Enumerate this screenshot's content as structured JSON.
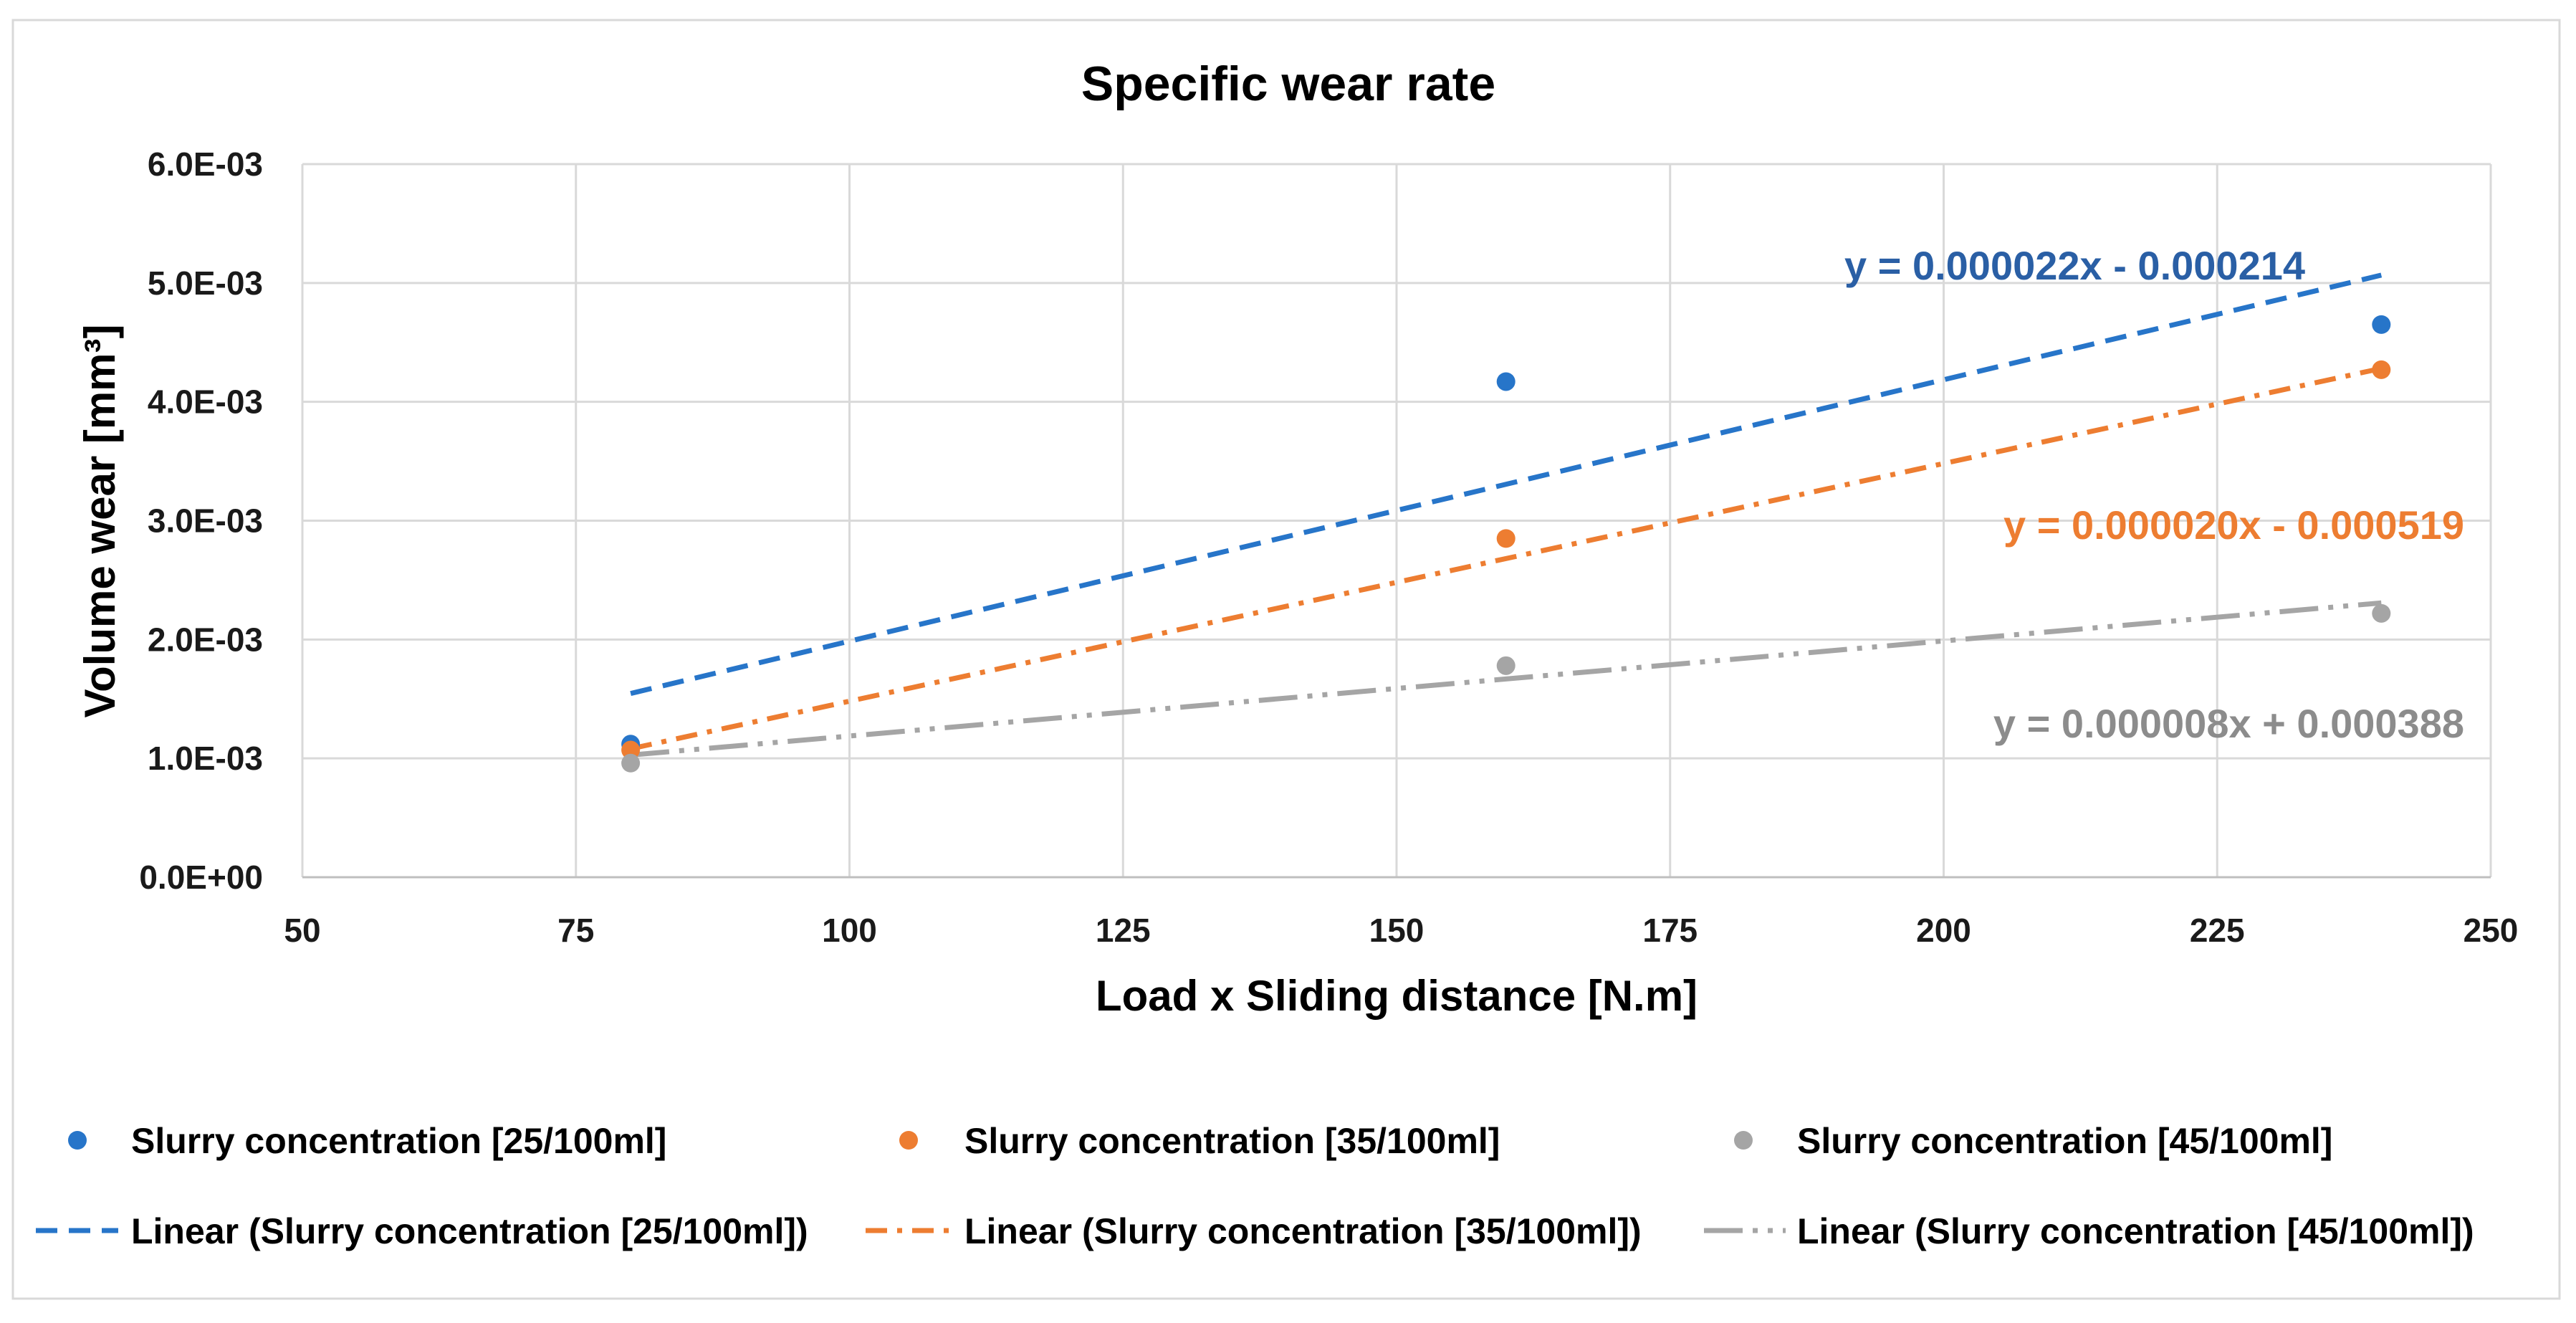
{
  "chart_data": {
    "type": "scatter",
    "title": "Specific wear rate",
    "xlabel": "Load x Sliding distance [N.m]",
    "ylabel": "Volume wear [mm³]",
    "xlim": [
      50,
      250
    ],
    "ylim": [
      0,
      0.006
    ],
    "xticks": [
      50,
      75,
      100,
      125,
      150,
      175,
      200,
      225,
      250
    ],
    "xtick_labels": [
      "50",
      "75",
      "100",
      "125",
      "150",
      "175",
      "200",
      "225",
      "250"
    ],
    "yticks": [
      0,
      0.001,
      0.002,
      0.003,
      0.004,
      0.005,
      0.006
    ],
    "ytick_labels": [
      "0.0E+00",
      "1.0E-03",
      "2.0E-03",
      "3.0E-03",
      "4.0E-03",
      "5.0E-03",
      "6.0E-03"
    ],
    "grid": true,
    "legend_position": "bottom",
    "series": [
      {
        "name": "Slurry concentration [25/100ml]",
        "color": "#2775C9",
        "x": [
          80,
          160,
          240
        ],
        "y": [
          0.00112,
          0.00417,
          0.00465
        ],
        "trendline": {
          "name": "Linear (Slurry concentration [25/100ml])",
          "slope": 2.2e-05,
          "intercept": -0.000214,
          "x_range": [
            80,
            240
          ],
          "equation": "y = 0.000022x - 0.000214",
          "label_color": "#2A5FA5"
        }
      },
      {
        "name": "Slurry concentration [35/100ml]",
        "color": "#ED7D31",
        "x": [
          80,
          160,
          240
        ],
        "y": [
          0.00107,
          0.00285,
          0.00427
        ],
        "trendline": {
          "name": "Linear (Slurry concentration [35/100ml])",
          "slope": 2e-05,
          "intercept": -0.000519,
          "x_range": [
            80,
            240
          ],
          "equation": "y = 0.000020x - 0.000519",
          "label_color": "#ED7D31"
        }
      },
      {
        "name": "Slurry concentration [45/100ml]",
        "color": "#A5A5A5",
        "x": [
          80,
          160,
          240
        ],
        "y": [
          0.00096,
          0.00178,
          0.00222
        ],
        "trendline": {
          "name": "Linear (Slurry concentration [45/100ml])",
          "slope": 8e-06,
          "intercept": 0.000388,
          "x_range": [
            80,
            240
          ],
          "equation": "y = 0.000008x + 0.000388",
          "label_color": "#8C8C8C"
        }
      }
    ]
  }
}
